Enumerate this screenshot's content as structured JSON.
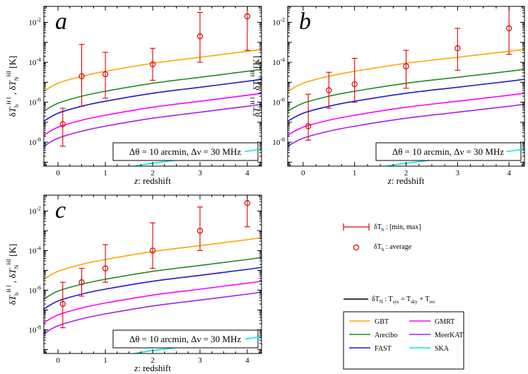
{
  "chart_data": {
    "type": "line",
    "yaxis_label": "δT_b^HI , δT_N^HI [K]",
    "xaxis_label": "z: redshift",
    "yscale": "log",
    "xlim": [
      -0.3,
      4.3
    ],
    "ylim_log10": [
      -9.2,
      -1.2
    ],
    "x_ticks": [
      0,
      1,
      2,
      3,
      4
    ],
    "y_tick_labels": [
      "10-2",
      "10-4",
      "10-6",
      "10-8"
    ],
    "y_tick_exps": [
      -2,
      -4,
      -6,
      -8
    ],
    "note": "Δθ = 10 arcmin,   Δν = 30 MHz",
    "colors": {
      "GBT": "#ffa500",
      "Arecibo": "#228b22",
      "FAST": "#1a1acd",
      "GMRT": "#ff00ff",
      "MeerKAT": "#a020f0",
      "SKA": "#00e5e5",
      "data": "#e00000"
    },
    "noise_curves_log10": [
      {
        "name": "GBT",
        "z": [
          -0.3,
          0,
          0.5,
          1,
          2,
          3,
          4,
          4.3
        ],
        "log10T": [
          -5.45,
          -5.05,
          -4.7,
          -4.45,
          -4.05,
          -3.75,
          -3.45,
          -3.35
        ]
      },
      {
        "name": "Arecibo",
        "z": [
          -0.3,
          0,
          0.5,
          1,
          2,
          3,
          4,
          4.3
        ],
        "log10T": [
          -6.45,
          -6.05,
          -5.7,
          -5.45,
          -5.05,
          -4.75,
          -4.45,
          -4.35
        ]
      },
      {
        "name": "FAST",
        "z": [
          -0.3,
          0,
          0.5,
          1,
          2,
          3,
          4,
          4.3
        ],
        "log10T": [
          -6.95,
          -6.55,
          -6.2,
          -5.95,
          -5.55,
          -5.25,
          -4.95,
          -4.85
        ]
      },
      {
        "name": "GMRT",
        "z": [
          -0.3,
          0,
          0.5,
          1,
          2,
          3,
          4,
          4.3
        ],
        "log10T": [
          -7.65,
          -7.25,
          -6.9,
          -6.65,
          -6.25,
          -5.95,
          -5.65,
          -5.55
        ]
      },
      {
        "name": "MeerKAT",
        "z": [
          -0.3,
          0,
          0.5,
          1,
          2,
          3,
          4,
          4.3
        ],
        "log10T": [
          -8.2,
          -7.8,
          -7.45,
          -7.2,
          -6.8,
          -6.5,
          -6.2,
          -6.1
        ]
      },
      {
        "name": "SKA",
        "z": [
          1.5,
          2,
          3,
          4,
          4.3
        ],
        "log10T": [
          -9.25,
          -9.05,
          -8.75,
          -8.45,
          -8.35
        ]
      }
    ],
    "panels": [
      {
        "letter": "a",
        "data_points": [
          {
            "z": 0.1,
            "avg": -7.1,
            "min": -8.2,
            "max": -6.3
          },
          {
            "z": 0.5,
            "avg": -4.7,
            "min": -6.2,
            "max": -3.1
          },
          {
            "z": 1.0,
            "avg": -4.6,
            "min": -5.8,
            "max": -3.5
          },
          {
            "z": 2.0,
            "avg": -4.1,
            "min": -4.9,
            "max": -3.3
          },
          {
            "z": 3.0,
            "avg": -2.7,
            "min": -4.0,
            "max": -1.5
          },
          {
            "z": 4.0,
            "avg": -1.7,
            "min": -3.4,
            "max": -1.0
          }
        ]
      },
      {
        "letter": "b",
        "data_points": [
          {
            "z": 0.1,
            "avg": -7.2,
            "min": -7.9,
            "max": -5.6
          },
          {
            "z": 0.5,
            "avg": -5.4,
            "min": -6.3,
            "max": -4.5
          },
          {
            "z": 1.0,
            "avg": -5.1,
            "min": -6.0,
            "max": -3.8
          },
          {
            "z": 2.0,
            "avg": -4.2,
            "min": -5.3,
            "max": -3.4
          },
          {
            "z": 3.0,
            "avg": -3.3,
            "min": -4.4,
            "max": -2.3
          },
          {
            "z": 4.0,
            "avg": -2.3,
            "min": -3.6,
            "max": -1.1
          }
        ]
      },
      {
        "letter": "c",
        "data_points": [
          {
            "z": 0.1,
            "avg": -6.7,
            "min": -7.9,
            "max": -5.6
          },
          {
            "z": 0.5,
            "avg": -5.6,
            "min": -6.3,
            "max": -4.9
          },
          {
            "z": 1.0,
            "avg": -4.9,
            "min": -5.6,
            "max": -3.7
          },
          {
            "z": 2.0,
            "avg": -4.0,
            "min": -4.9,
            "max": -2.6
          },
          {
            "z": 3.0,
            "avg": -3.0,
            "min": -4.0,
            "max": -1.8
          },
          {
            "z": 4.0,
            "avg": -1.6,
            "min": -2.8,
            "max": -1.1
          }
        ]
      }
    ],
    "legend": {
      "errorbar_text": "δT_b : [min, max]",
      "average_text": "δT_b : average",
      "noise_text": "δT_N : T_sys = T_sky + T_rec",
      "entries": [
        "GBT",
        "GMRT",
        "Arecibo",
        "MeerKAT",
        "FAST",
        "SKA"
      ]
    }
  }
}
